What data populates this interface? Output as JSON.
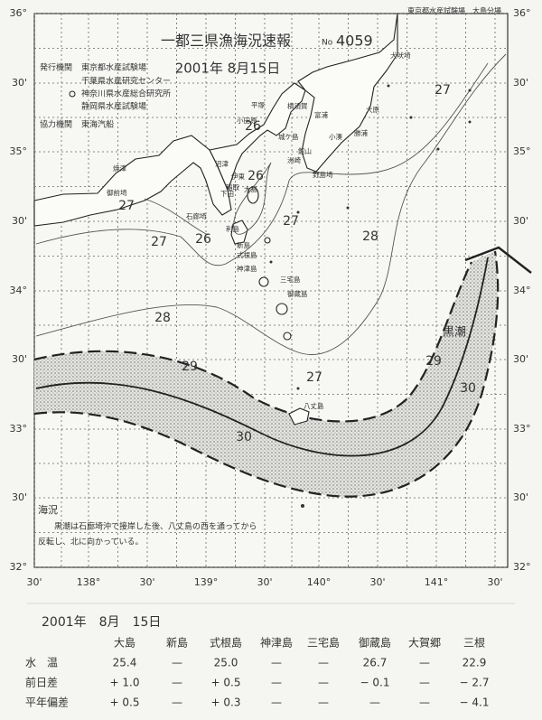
{
  "header": {
    "agency_note": "東京都水産試験場　大島分場",
    "title": "一都三県漁海況速報",
    "number_prefix": "No",
    "number": "4059",
    "date": "2001年 8月15日"
  },
  "issuers": {
    "label": "発行機関",
    "list": [
      "東京都水産試験場",
      "千葉県水産研究センター",
      "神奈川県水産総合研究所",
      "静岡県水産試験場"
    ],
    "cooperation_label": "協力機関",
    "cooperation": "東海汽船"
  },
  "map": {
    "lat_labels": [
      "36°",
      "30'",
      "35°",
      "30'",
      "34°",
      "30'",
      "33°",
      "30'",
      "32°"
    ],
    "lon_labels": [
      "30'",
      "138°",
      "30'",
      "139°",
      "30'",
      "140°",
      "30'",
      "141°",
      "30'"
    ],
    "places": [
      "犬吠埼",
      "大原",
      "勝浦",
      "小湊",
      "野島埼",
      "館山",
      "洲崎",
      "富浦",
      "横須賀",
      "平塚",
      "小田原",
      "城ケ島",
      "焼津",
      "御前埼",
      "沼津",
      "伊東",
      "稲取",
      "下田",
      "石廊埼",
      "大島",
      "利島",
      "新島",
      "式根島",
      "神津島",
      "三宅島",
      "御蔵島",
      "八丈島"
    ],
    "isotherm_labels": [
      27,
      26,
      26,
      27,
      27,
      26,
      27,
      28,
      28,
      29,
      29,
      27,
      30,
      30
    ],
    "current_label": "黒潮"
  },
  "remarks": {
    "title": "海況",
    "lines": [
      "黒潮は石廊埼沖で接岸した後、八丈島の西を通ってから",
      "反転し、北に向かっている。"
    ]
  },
  "table": {
    "date": "2001年　8月　15日",
    "columns": [
      "大島",
      "新島",
      "式根島",
      "神津島",
      "三宅島",
      "御蔵島",
      "大賀郷",
      "三根"
    ],
    "rows": [
      {
        "label": "水　温",
        "cells": [
          "25.4",
          "—",
          "25.0",
          "—",
          "—",
          "26.7",
          "—",
          "22.9"
        ]
      },
      {
        "label": "前日差",
        "cells": [
          "+ 1.0",
          "—",
          "+ 0.5",
          "—",
          "—",
          "− 0.1",
          "—",
          "− 2.7"
        ]
      },
      {
        "label": "平年偏差",
        "cells": [
          "+ 0.5",
          "—",
          "+ 0.3",
          "—",
          "—",
          "—",
          "—",
          "− 4.1"
        ]
      }
    ]
  }
}
